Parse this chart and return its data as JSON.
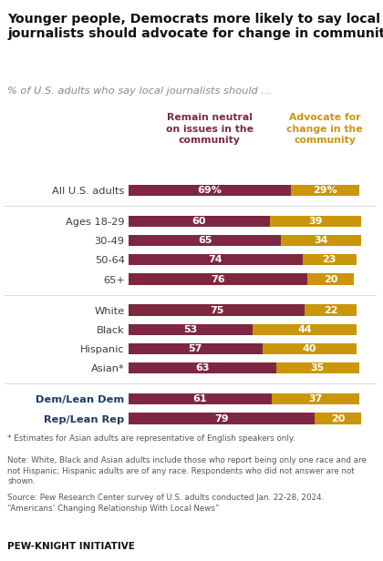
{
  "title": "Younger people, Democrats more likely to say local\njournalists should advocate for change in community",
  "subtitle": "% of U.S. adults who say local journalists should ...",
  "col1_label": "Remain neutral\non issues in the\ncommunity",
  "col2_label": "Advocate for\nchange in the\ncommunity",
  "col1_color": "#7d2840",
  "col2_color": "#c9960c",
  "categories": [
    "All U.S. adults",
    "Ages 18-29",
    "30-49",
    "50-64",
    "65+",
    "White",
    "Black",
    "Hispanic",
    "Asian*",
    "Dem/Lean Dem",
    "Rep/Lean Rep"
  ],
  "neutral_vals": [
    69,
    60,
    65,
    74,
    76,
    75,
    53,
    57,
    63,
    61,
    79
  ],
  "advocate_vals": [
    29,
    39,
    34,
    23,
    20,
    22,
    44,
    40,
    35,
    37,
    20
  ],
  "neutral_labels": [
    "69%",
    "60",
    "65",
    "74",
    "76",
    "75",
    "53",
    "57",
    "63",
    "61",
    "79"
  ],
  "advocate_labels": [
    "29%",
    "39",
    "34",
    "23",
    "20",
    "22",
    "44",
    "40",
    "35",
    "37",
    "20"
  ],
  "party_indices": [
    9,
    10
  ],
  "footnote_star": "* Estimates for Asian adults are representative of English speakers only.",
  "footnote_note": "Note: White, Black and Asian adults include those who report being only one race and are\nnot Hispanic; Hispanic adults are of any race. Respondents who did not answer are not\nshown.",
  "footnote_source": "Source: Pew Research Center survey of U.S. adults conducted Jan. 22-28, 2024.\n“Americans’ Changing Relationship With Local News”",
  "footer_bold": "PEW-KNIGHT INITIATIVE",
  "background_color": "#ffffff",
  "text_color_white": "#ffffff",
  "category_color_default": "#3d3d3d",
  "category_color_party": "#1c3a5e",
  "subtitle_color": "#888888",
  "footnote_color": "#555555"
}
